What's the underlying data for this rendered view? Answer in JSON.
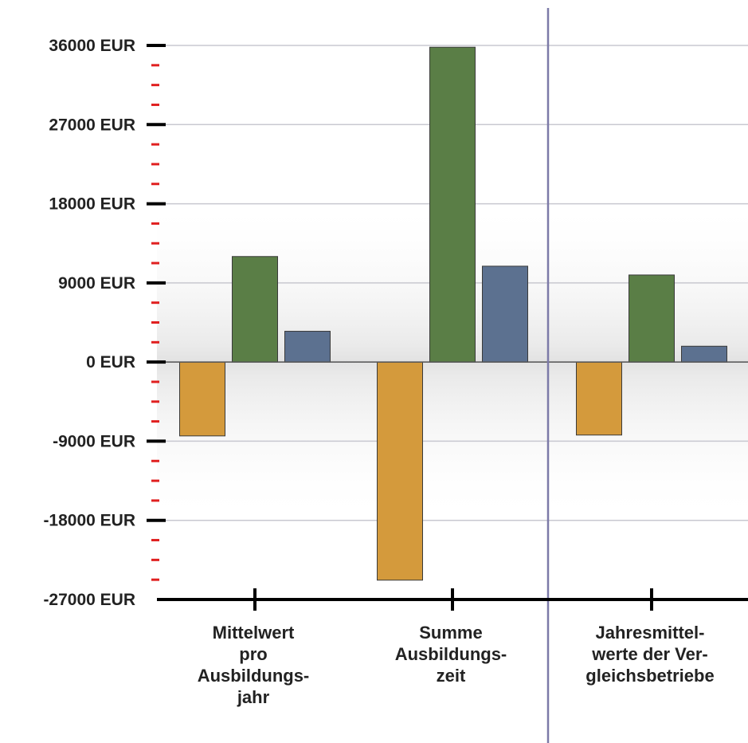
{
  "chart_data": {
    "type": "bar",
    "categories": [
      [
        "Mittelwert",
        "pro",
        "Ausbildungs-",
        "jahr"
      ],
      [
        "Summe",
        "Ausbildungs-",
        "zeit"
      ],
      [
        "Jahresmittel-",
        "werte der Ver-",
        "gleichsbetriebe"
      ]
    ],
    "series": [
      {
        "color": "#D49A3C",
        "values": [
          -8400,
          -24800,
          -8300
        ]
      },
      {
        "color": "#5A7E46",
        "values": [
          12000,
          35800,
          9900
        ]
      },
      {
        "color": "#5C7190",
        "values": [
          3500,
          10900,
          1800
        ]
      }
    ],
    "y_ticks": [
      "36000 EUR",
      "27000 EUR",
      "18000 EUR",
      "9000 EUR",
      "0 EUR",
      "-9000 EUR",
      "-18000 EUR",
      "-27000 EUR"
    ],
    "y_tick_values": [
      36000,
      27000,
      18000,
      9000,
      0,
      -9000,
      -18000,
      -27000
    ],
    "ylim": [
      -27000,
      36000
    ],
    "minor_tick_step": 2250,
    "grid": true,
    "separator_after_category": 1,
    "colors": {
      "grid": "#c8c8d0",
      "axis": "#000000",
      "minor_tick": "#e02020",
      "separator": "#7c7aa8"
    }
  }
}
